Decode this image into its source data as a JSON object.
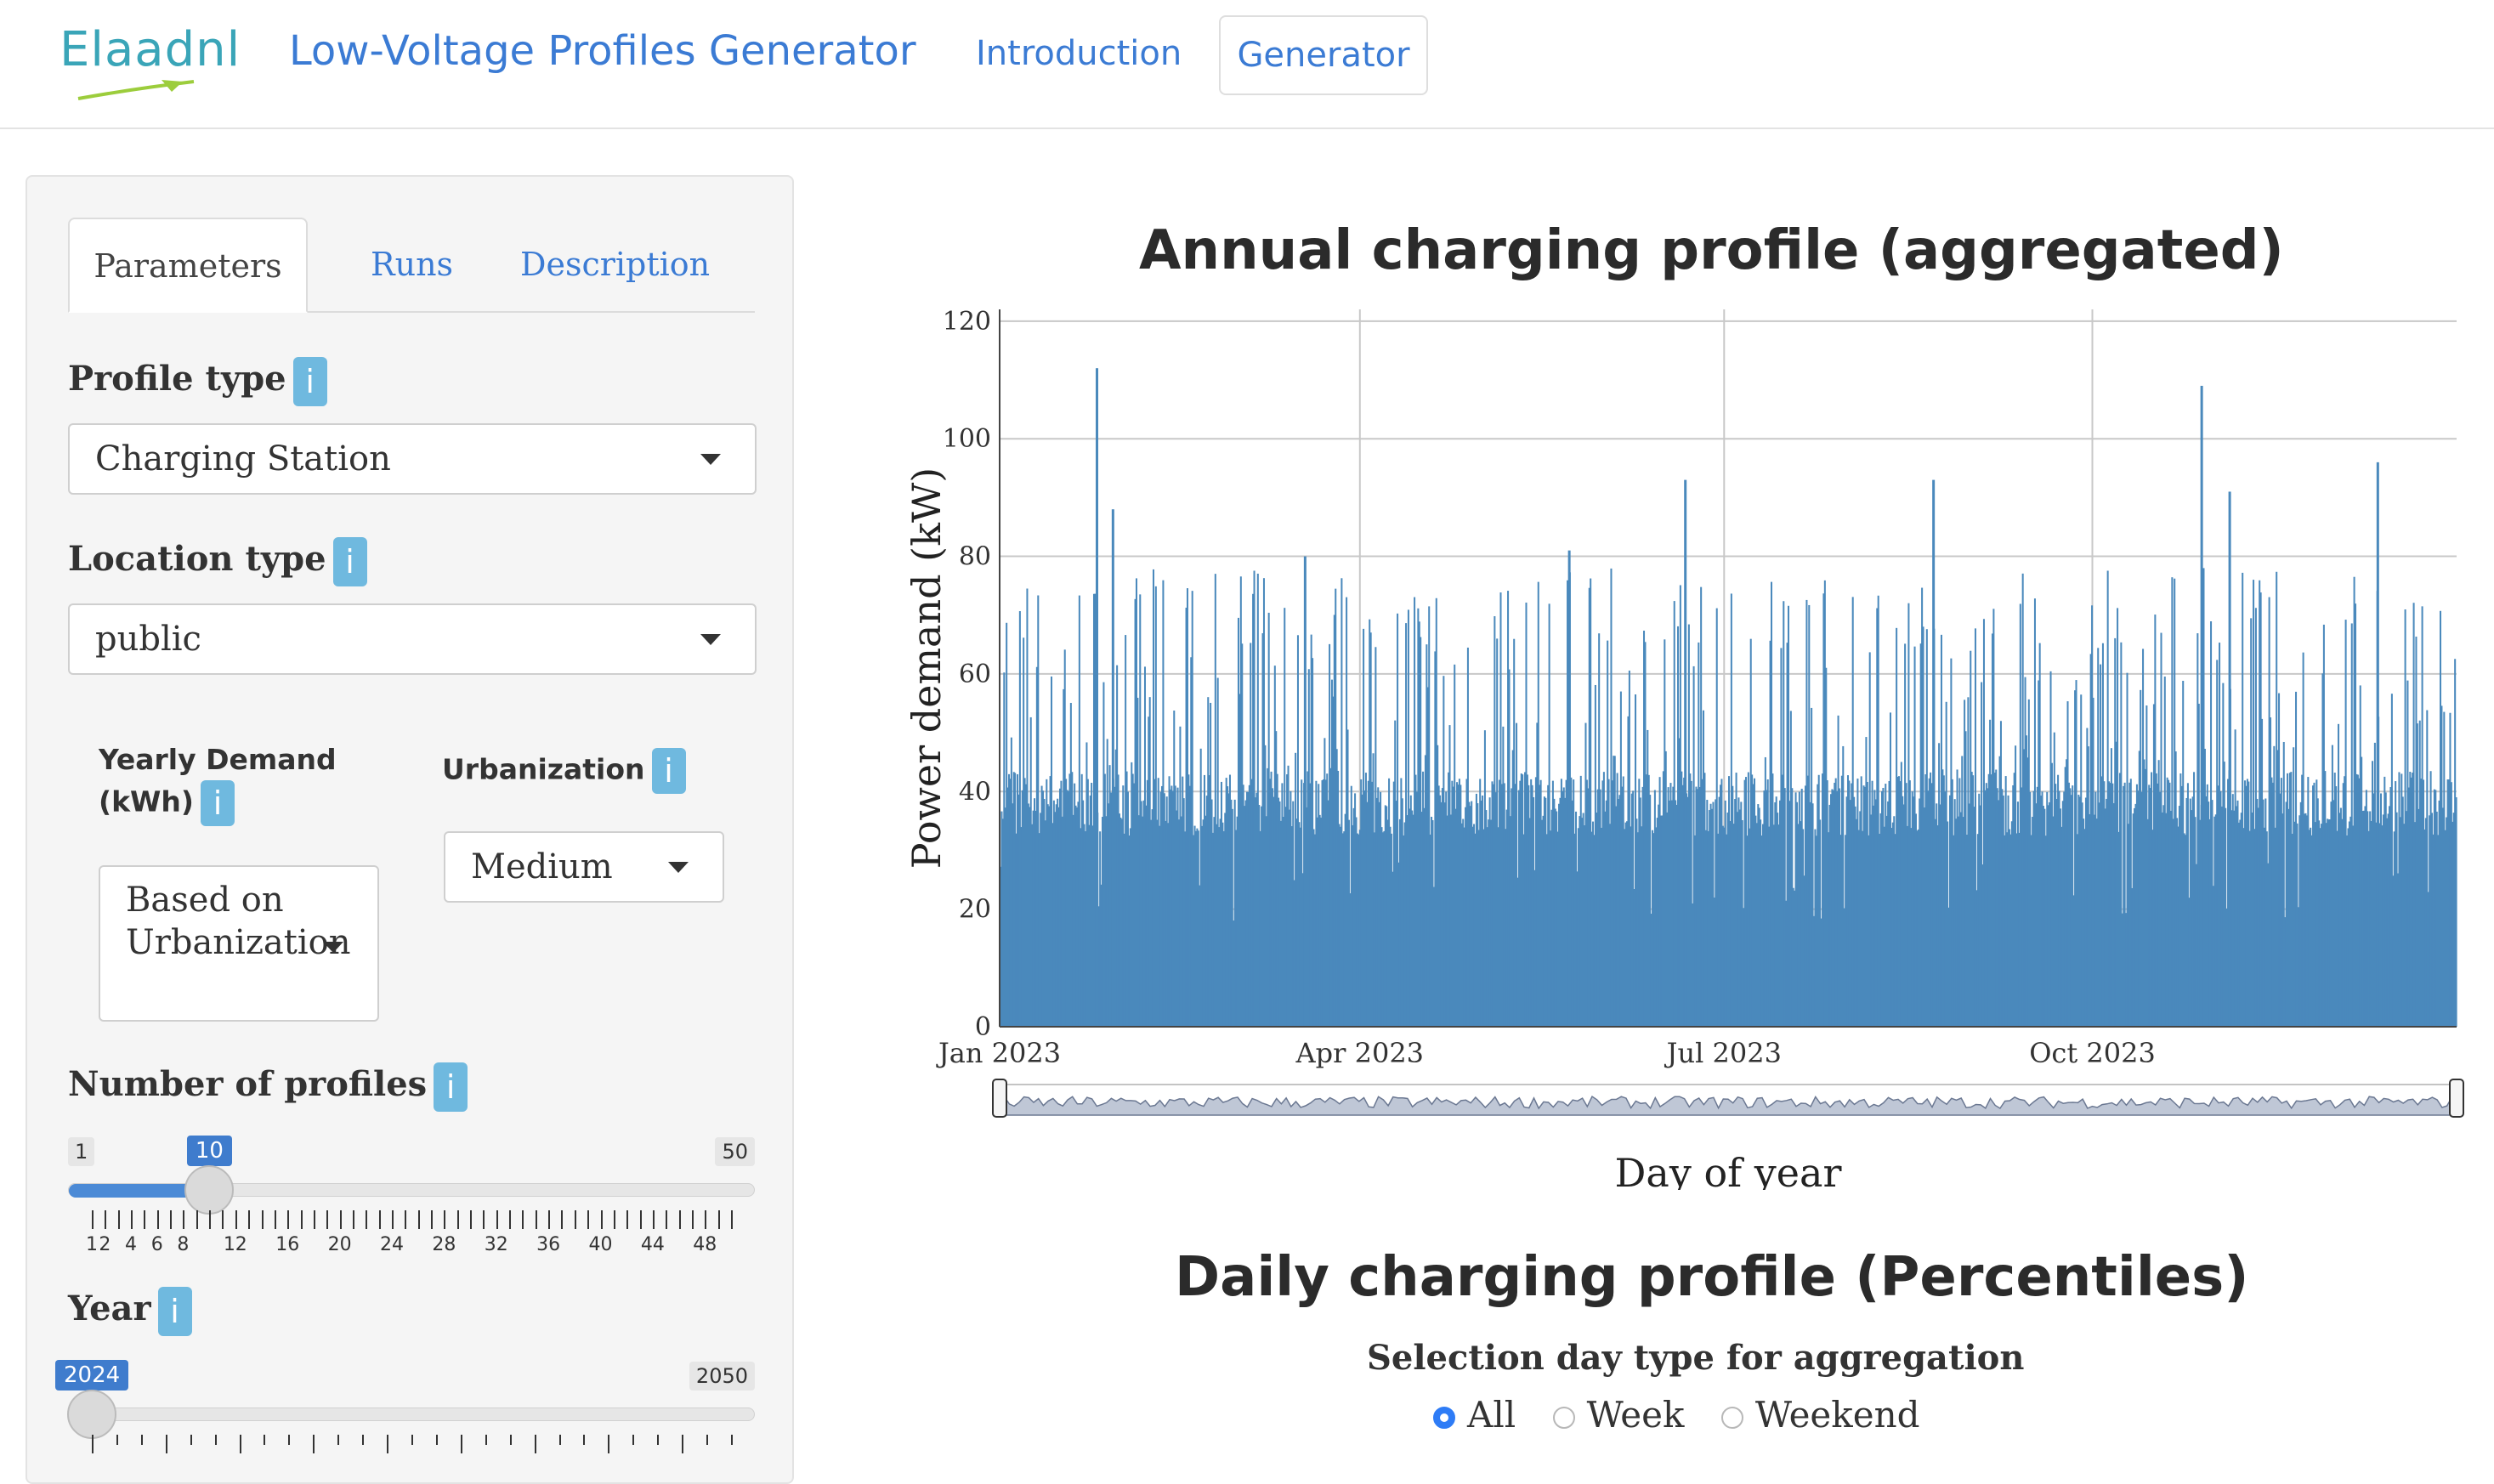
{
  "nav": {
    "logo_text": "Elaadnl",
    "brand": "Low-Voltage Profiles Generator",
    "links": [
      "Introduction",
      "Generator"
    ]
  },
  "sidebar": {
    "tabs": [
      "Parameters",
      "Runs",
      "Description"
    ],
    "profile_type": {
      "label": "Profile type",
      "value": "Charging Station"
    },
    "location_type": {
      "label": "Location type",
      "value": "public"
    },
    "yearly_demand": {
      "label_line1": "Yearly Demand",
      "label_line2": "(kWh)",
      "value_line1": "Based on",
      "value_line2": "Urbanization"
    },
    "urbanization": {
      "label": "Urbanization",
      "value": "Medium"
    },
    "num_profiles": {
      "label": "Number of profiles",
      "min": "1",
      "max": "50",
      "value": "10",
      "fraction": 0.184,
      "tick_labels": [
        "1",
        "2",
        "4",
        "6",
        "8",
        "12",
        "16",
        "20",
        "24",
        "28",
        "32",
        "36",
        "40",
        "44",
        "48"
      ]
    },
    "year": {
      "label": "Year",
      "min": "2024",
      "max": "2050",
      "value": "2024",
      "fraction": 0.0
    },
    "info_glyph": "i"
  },
  "main": {
    "annual_title": "Annual charging profile (aggregated)",
    "daily_title": "Daily charging profile (Percentiles)",
    "selection_label": "Selection day type for aggregation",
    "radio_options": [
      "All",
      "Week",
      "Weekend"
    ],
    "radio_selected": "All"
  },
  "chart_data": {
    "type": "bar",
    "title": "Annual charging profile (aggregated)",
    "xlabel": "Day of year",
    "ylabel": "Power demand (kW)",
    "x_tick_labels": [
      "Jan 2023",
      "Apr 2023",
      "Jul 2023",
      "Oct 2023"
    ],
    "y_tick_labels": [
      "0",
      "20",
      "40",
      "60",
      "80",
      "100",
      "120"
    ],
    "ylim": [
      0,
      122
    ],
    "x_range": [
      "2023-01-01",
      "2023-12-31"
    ],
    "grid": true,
    "color": "#4a89bc",
    "base_level_kw": 32,
    "peaks": [
      {
        "date": "2023-01-25",
        "value": 112
      },
      {
        "date": "2023-01-29",
        "value": 88
      },
      {
        "date": "2023-03-18",
        "value": 80
      },
      {
        "date": "2023-05-23",
        "value": 81
      },
      {
        "date": "2023-06-21",
        "value": 93
      },
      {
        "date": "2023-08-22",
        "value": 93
      },
      {
        "date": "2023-10-28",
        "value": 109
      },
      {
        "date": "2023-11-04",
        "value": 91
      },
      {
        "date": "2023-12-11",
        "value": 96
      }
    ],
    "range_selector": true
  },
  "colors": {
    "accent": "#3b7bd4",
    "info": "#6fb9df",
    "slider": "#4b8ad6",
    "chart": "#4a89bc"
  }
}
